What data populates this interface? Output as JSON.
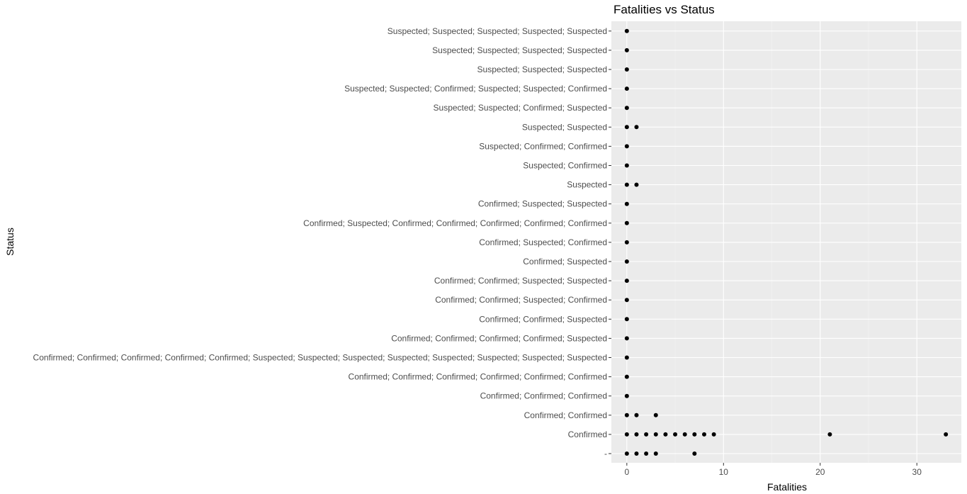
{
  "chart_data": {
    "type": "scatter",
    "title": "Fatalities vs Status",
    "xlabel": "Fatalities",
    "ylabel": "Status",
    "xlim": [
      -1.6,
      34.6
    ],
    "x_ticks": [
      0,
      10,
      20,
      30
    ],
    "grid": true,
    "categories": [
      "-",
      "Confirmed",
      "Confirmed; Confirmed",
      "Confirmed; Confirmed; Confirmed",
      "Confirmed; Confirmed; Confirmed; Confirmed; Confirmed; Confirmed",
      "Confirmed; Confirmed; Confirmed; Confirmed; Confirmed; Suspected; Suspected; Suspected; Suspected; Suspected; Suspected; Suspected; Suspected",
      "Confirmed; Confirmed; Confirmed; Confirmed; Suspected",
      "Confirmed; Confirmed; Suspected",
      "Confirmed; Confirmed; Suspected; Confirmed",
      "Confirmed; Confirmed; Suspected; Suspected",
      "Confirmed; Suspected",
      "Confirmed; Suspected; Confirmed",
      "Confirmed; Suspected; Confirmed; Confirmed; Confirmed; Confirmed; Confirmed",
      "Confirmed; Suspected; Suspected",
      "Suspected",
      "Suspected; Confirmed",
      "Suspected; Confirmed; Confirmed",
      "Suspected; Suspected",
      "Suspected; Suspected; Confirmed; Suspected",
      "Suspected; Suspected; Confirmed; Suspected; Suspected; Confirmed",
      "Suspected; Suspected; Suspected",
      "Suspected; Suspected; Suspected; Suspected",
      "Suspected; Suspected; Suspected; Suspected; Suspected"
    ],
    "points": [
      {
        "y": "-",
        "x": [
          0,
          1,
          2,
          3,
          7
        ]
      },
      {
        "y": "Confirmed",
        "x": [
          0,
          1,
          2,
          3,
          4,
          5,
          6,
          7,
          8,
          9,
          21,
          33
        ]
      },
      {
        "y": "Confirmed; Confirmed",
        "x": [
          0,
          1,
          3
        ]
      },
      {
        "y": "Confirmed; Confirmed; Confirmed",
        "x": [
          0
        ]
      },
      {
        "y": "Confirmed; Confirmed; Confirmed; Confirmed; Confirmed; Confirmed",
        "x": [
          0
        ]
      },
      {
        "y": "Confirmed; Confirmed; Confirmed; Confirmed; Confirmed; Suspected; Suspected; Suspected; Suspected; Suspected; Suspected; Suspected; Suspected",
        "x": [
          0
        ]
      },
      {
        "y": "Confirmed; Confirmed; Confirmed; Confirmed; Suspected",
        "x": [
          0
        ]
      },
      {
        "y": "Confirmed; Confirmed; Suspected",
        "x": [
          0
        ]
      },
      {
        "y": "Confirmed; Confirmed; Suspected; Confirmed",
        "x": [
          0
        ]
      },
      {
        "y": "Confirmed; Confirmed; Suspected; Suspected",
        "x": [
          0
        ]
      },
      {
        "y": "Confirmed; Suspected",
        "x": [
          0
        ]
      },
      {
        "y": "Confirmed; Suspected; Confirmed",
        "x": [
          0
        ]
      },
      {
        "y": "Confirmed; Suspected; Confirmed; Confirmed; Confirmed; Confirmed; Confirmed",
        "x": [
          0
        ]
      },
      {
        "y": "Confirmed; Suspected; Suspected",
        "x": [
          0
        ]
      },
      {
        "y": "Suspected",
        "x": [
          0,
          1
        ]
      },
      {
        "y": "Suspected; Confirmed",
        "x": [
          0
        ]
      },
      {
        "y": "Suspected; Confirmed; Confirmed",
        "x": [
          0
        ]
      },
      {
        "y": "Suspected; Suspected",
        "x": [
          0,
          1
        ]
      },
      {
        "y": "Suspected; Suspected; Confirmed; Suspected",
        "x": [
          0
        ]
      },
      {
        "y": "Suspected; Suspected; Confirmed; Suspected; Suspected; Confirmed",
        "x": [
          0
        ]
      },
      {
        "y": "Suspected; Suspected; Suspected",
        "x": [
          0
        ]
      },
      {
        "y": "Suspected; Suspected; Suspected; Suspected",
        "x": [
          0
        ]
      },
      {
        "y": "Suspected; Suspected; Suspected; Suspected; Suspected",
        "x": [
          0
        ]
      }
    ],
    "colors": {
      "panel": "#ebebeb",
      "grid_major": "#ffffff",
      "grid_minor": "#f5f5f5",
      "point": "#000000",
      "tick": "#333333"
    }
  }
}
